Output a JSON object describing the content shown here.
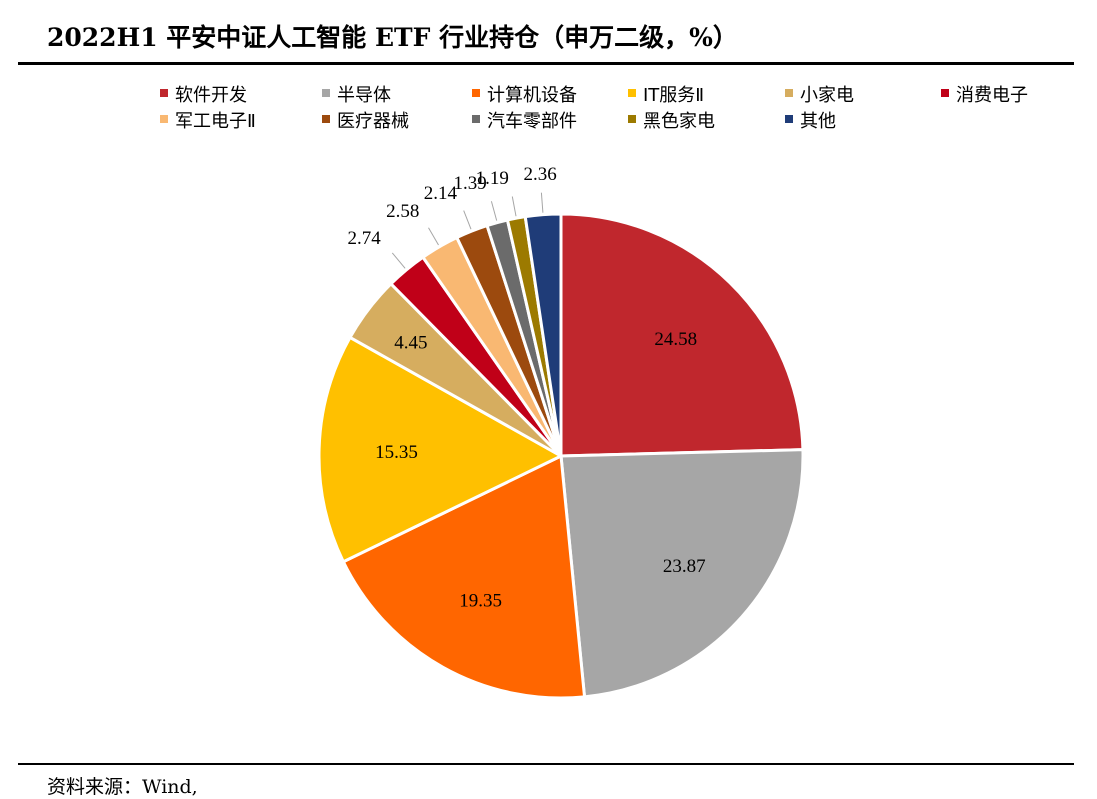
{
  "title": "2022H1 平安中证人工智能 ETF 行业持仓（申万二级，%）",
  "source": "资料来源：Wind,",
  "chart_data": {
    "type": "pie",
    "title": "2022H1 平安中证人工智能 ETF 行业持仓（申万二级，%）",
    "legend_position": "top",
    "slices": [
      {
        "name": "软件开发",
        "value": 24.58,
        "color": "#C0272D"
      },
      {
        "name": "半导体",
        "value": 23.87,
        "color": "#A6A6A6"
      },
      {
        "name": "计算机设备",
        "value": 19.35,
        "color": "#FF6600"
      },
      {
        "name": "IT服务Ⅱ",
        "value": 15.35,
        "color": "#FFC000"
      },
      {
        "name": "小家电",
        "value": 4.45,
        "color": "#D6AD5F"
      },
      {
        "name": "消费电子",
        "value": 2.74,
        "color": "#C00018"
      },
      {
        "name": "军工电子Ⅱ",
        "value": 2.58,
        "color": "#F9B872"
      },
      {
        "name": "医疗器械",
        "value": 2.14,
        "color": "#9C4A0E"
      },
      {
        "name": "汽车零部件",
        "value": 1.39,
        "color": "#6B6B6B"
      },
      {
        "name": "黑色家电",
        "value": 1.19,
        "color": "#9C7A00"
      },
      {
        "name": "其他",
        "value": 2.36,
        "color": "#1F3C78"
      }
    ]
  }
}
